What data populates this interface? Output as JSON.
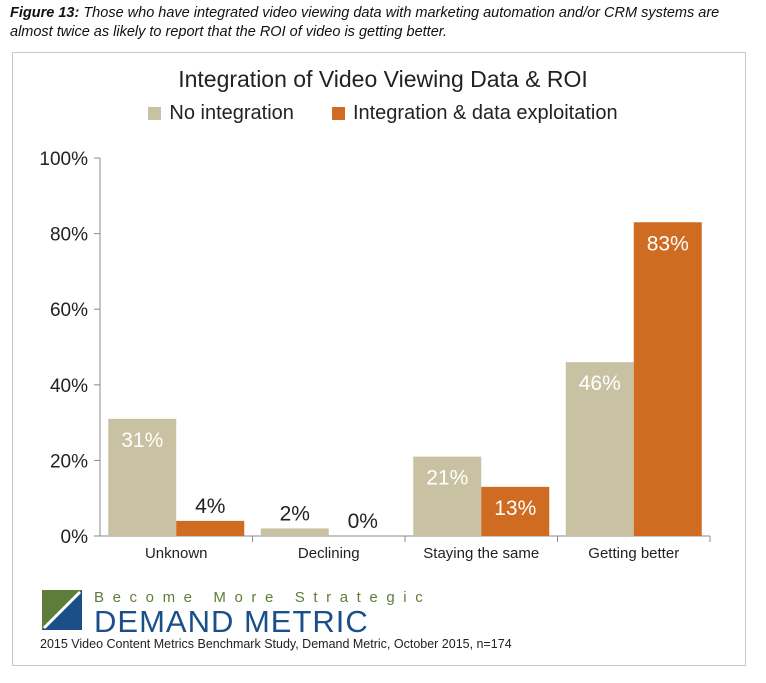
{
  "figure": {
    "number": "Figure 13:",
    "caption": "Those who have integrated video viewing data with marketing automation and/or CRM systems are almost twice as likely to report that the ROI of video is getting better."
  },
  "brand": {
    "tagline": "Become More Strategic",
    "name": "DEMAND METRIC",
    "source_note": "2015 Video Content Metrics Benchmark Study, Demand Metric, October 2015, n=174"
  },
  "colors": {
    "no_integration": "#c9c2a2",
    "integration": "#cf6c21",
    "logo_green": "#5f7d3a",
    "logo_blue": "#1b4f8a"
  },
  "chart_data": {
    "type": "bar",
    "title": "Integration of Video Viewing Data & ROI",
    "categories": [
      "Unknown",
      "Declining",
      "Staying the same",
      "Getting better"
    ],
    "series": [
      {
        "name": "No integration",
        "values": [
          31,
          2,
          21,
          46
        ],
        "labels": [
          "31%",
          "2%",
          "21%",
          "46%"
        ]
      },
      {
        "name": "Integration & data exploitation",
        "values": [
          4,
          0,
          13,
          83
        ],
        "labels": [
          "4%",
          "0%",
          "13%",
          "83%"
        ]
      }
    ],
    "ylim": [
      0,
      100
    ],
    "yticks": [
      "0%",
      "20%",
      "40%",
      "60%",
      "80%",
      "100%"
    ],
    "legend": "top",
    "grid": false
  }
}
